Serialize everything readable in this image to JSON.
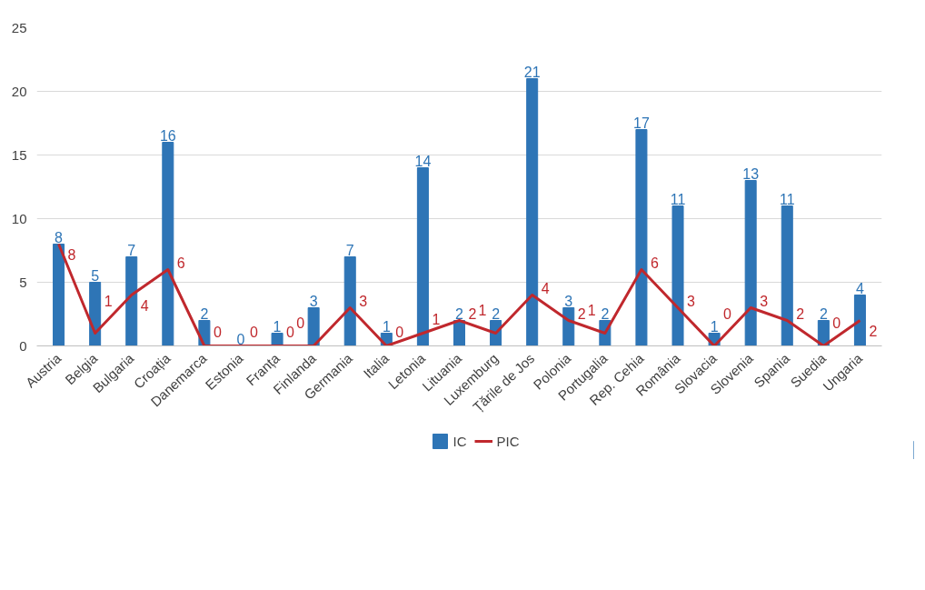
{
  "chart_data": {
    "type": "bar",
    "categories": [
      "Austria",
      "Belgia",
      "Bulgaria",
      "Croația",
      "Danemarca",
      "Estonia",
      "Franța",
      "Finlanda",
      "Germania",
      "Italia",
      "Letonia",
      "Lituania",
      "Luxemburg",
      "Țările de Jos",
      "Polonia",
      "Portugalia",
      "Rep. Cehia",
      "România",
      "Slovacia",
      "Slovenia",
      "Spania",
      "Suedia",
      "Ungaria"
    ],
    "series": [
      {
        "name": "IC",
        "color": "#2e75b6",
        "values": [
          8,
          5,
          7,
          16,
          2,
          0,
          1,
          3,
          7,
          1,
          14,
          2,
          2,
          21,
          3,
          2,
          17,
          11,
          1,
          13,
          11,
          2,
          4
        ]
      },
      {
        "name": "PIC",
        "type": "line",
        "color": "#c0282d",
        "values": [
          8,
          1,
          4,
          6,
          0,
          0,
          0,
          0,
          3,
          0,
          1,
          2,
          1,
          4,
          2,
          1,
          6,
          3,
          0,
          3,
          2,
          0,
          2
        ]
      }
    ],
    "ylim": [
      0,
      25
    ],
    "yticks": [
      0,
      5,
      10,
      15,
      20,
      25
    ],
    "grid": "y",
    "legend": "bottom",
    "data_labels": true,
    "marker": "none",
    "line_style": "solid"
  }
}
